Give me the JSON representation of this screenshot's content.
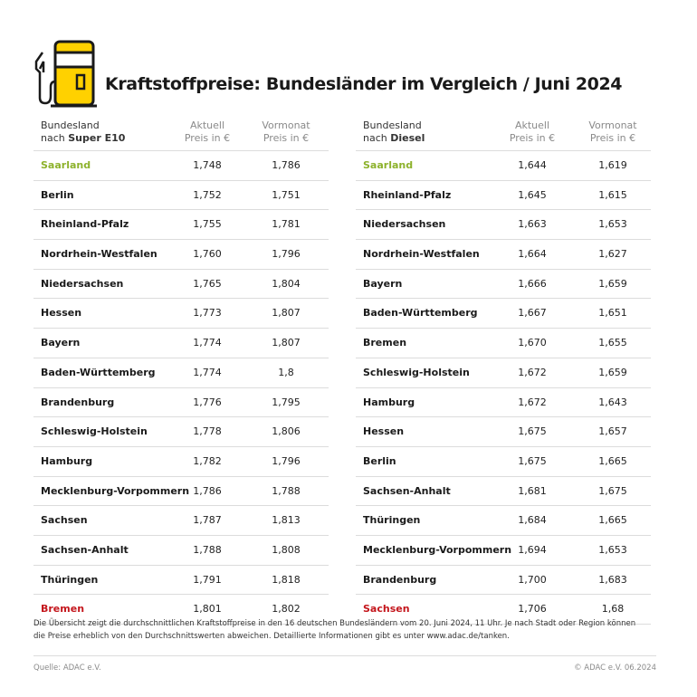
{
  "title": "Kraftstoffpreise: Bundesländer im Vergleich / Juni 2024",
  "colors": {
    "lowest": "#8db22c",
    "highest": "#c4161c",
    "icon_yellow": "#ffd100"
  },
  "icon": "fuel-pump-icon",
  "tables": [
    {
      "header": {
        "col1_line1": "Bundesland",
        "col1_prefix": "nach ",
        "col1_fuel": "Super E10",
        "col2_line1": "Aktuell",
        "col2_line2": "Preis in €",
        "col3_line1": "Vormonat",
        "col3_line2": "Preis in €"
      },
      "rows": [
        {
          "name": "Saarland",
          "current": "1,748",
          "previous": "1,786",
          "highlight": "lowest"
        },
        {
          "name": "Berlin",
          "current": "1,752",
          "previous": "1,751"
        },
        {
          "name": "Rheinland-Pfalz",
          "current": "1,755",
          "previous": "1,781"
        },
        {
          "name": "Nordrhein-Westfalen",
          "current": "1,760",
          "previous": "1,796"
        },
        {
          "name": "Niedersachsen",
          "current": "1,765",
          "previous": "1,804"
        },
        {
          "name": "Hessen",
          "current": "1,773",
          "previous": "1,807"
        },
        {
          "name": "Bayern",
          "current": "1,774",
          "previous": "1,807"
        },
        {
          "name": "Baden-Württemberg",
          "current": "1,774",
          "previous": "1,8"
        },
        {
          "name": "Brandenburg",
          "current": "1,776",
          "previous": "1,795"
        },
        {
          "name": "Schleswig-Holstein",
          "current": "1,778",
          "previous": "1,806"
        },
        {
          "name": "Hamburg",
          "current": "1,782",
          "previous": "1,796"
        },
        {
          "name": "Mecklenburg-Vorpommern",
          "current": "1,786",
          "previous": "1,788"
        },
        {
          "name": "Sachsen",
          "current": "1,787",
          "previous": "1,813"
        },
        {
          "name": "Sachsen-Anhalt",
          "current": "1,788",
          "previous": "1,808"
        },
        {
          "name": "Thüringen",
          "current": "1,791",
          "previous": "1,818"
        },
        {
          "name": "Bremen",
          "current": "1,801",
          "previous": "1,802",
          "highlight": "highest"
        }
      ]
    },
    {
      "header": {
        "col1_line1": "Bundesland",
        "col1_prefix": "nach ",
        "col1_fuel": "Diesel",
        "col2_line1": "Aktuell",
        "col2_line2": "Preis in €",
        "col3_line1": "Vormonat",
        "col3_line2": "Preis in €"
      },
      "rows": [
        {
          "name": "Saarland",
          "current": "1,644",
          "previous": "1,619",
          "highlight": "lowest"
        },
        {
          "name": "Rheinland-Pfalz",
          "current": "1,645",
          "previous": "1,615"
        },
        {
          "name": "Niedersachsen",
          "current": "1,663",
          "previous": "1,653"
        },
        {
          "name": "Nordrhein-Westfalen",
          "current": "1,664",
          "previous": "1,627"
        },
        {
          "name": "Bayern",
          "current": "1,666",
          "previous": "1,659"
        },
        {
          "name": "Baden-Württemberg",
          "current": "1,667",
          "previous": "1,651"
        },
        {
          "name": "Bremen",
          "current": "1,670",
          "previous": "1,655"
        },
        {
          "name": "Schleswig-Holstein",
          "current": "1,672",
          "previous": "1,659"
        },
        {
          "name": "Hamburg",
          "current": "1,672",
          "previous": "1,643"
        },
        {
          "name": "Hessen",
          "current": "1,675",
          "previous": "1,657"
        },
        {
          "name": "Berlin",
          "current": "1,675",
          "previous": "1,665"
        },
        {
          "name": "Sachsen-Anhalt",
          "current": "1,681",
          "previous": "1,675"
        },
        {
          "name": "Thüringen",
          "current": "1,684",
          "previous": "1,665"
        },
        {
          "name": "Mecklenburg-Vorpommern",
          "current": "1,694",
          "previous": "1,653"
        },
        {
          "name": "Brandenburg",
          "current": "1,700",
          "previous": "1,683"
        },
        {
          "name": "Sachsen",
          "current": "1,706",
          "previous": "1,68",
          "highlight": "highest"
        }
      ]
    }
  ],
  "note": "Die Übersicht zeigt die durchschnittlichen Kraftstoffpreise in den 16 deutschen Bundesländern vom 20. Juni 2024, 11 Uhr. Je nach Stadt oder Region können die Preise erheblich von den Durchschnittswerten abweichen. Detaillierte Informationen gibt es unter www.adac.de/tanken.",
  "source": "Quelle: ADAC e.V.",
  "copyright": "© ADAC e.V. 06.2024"
}
